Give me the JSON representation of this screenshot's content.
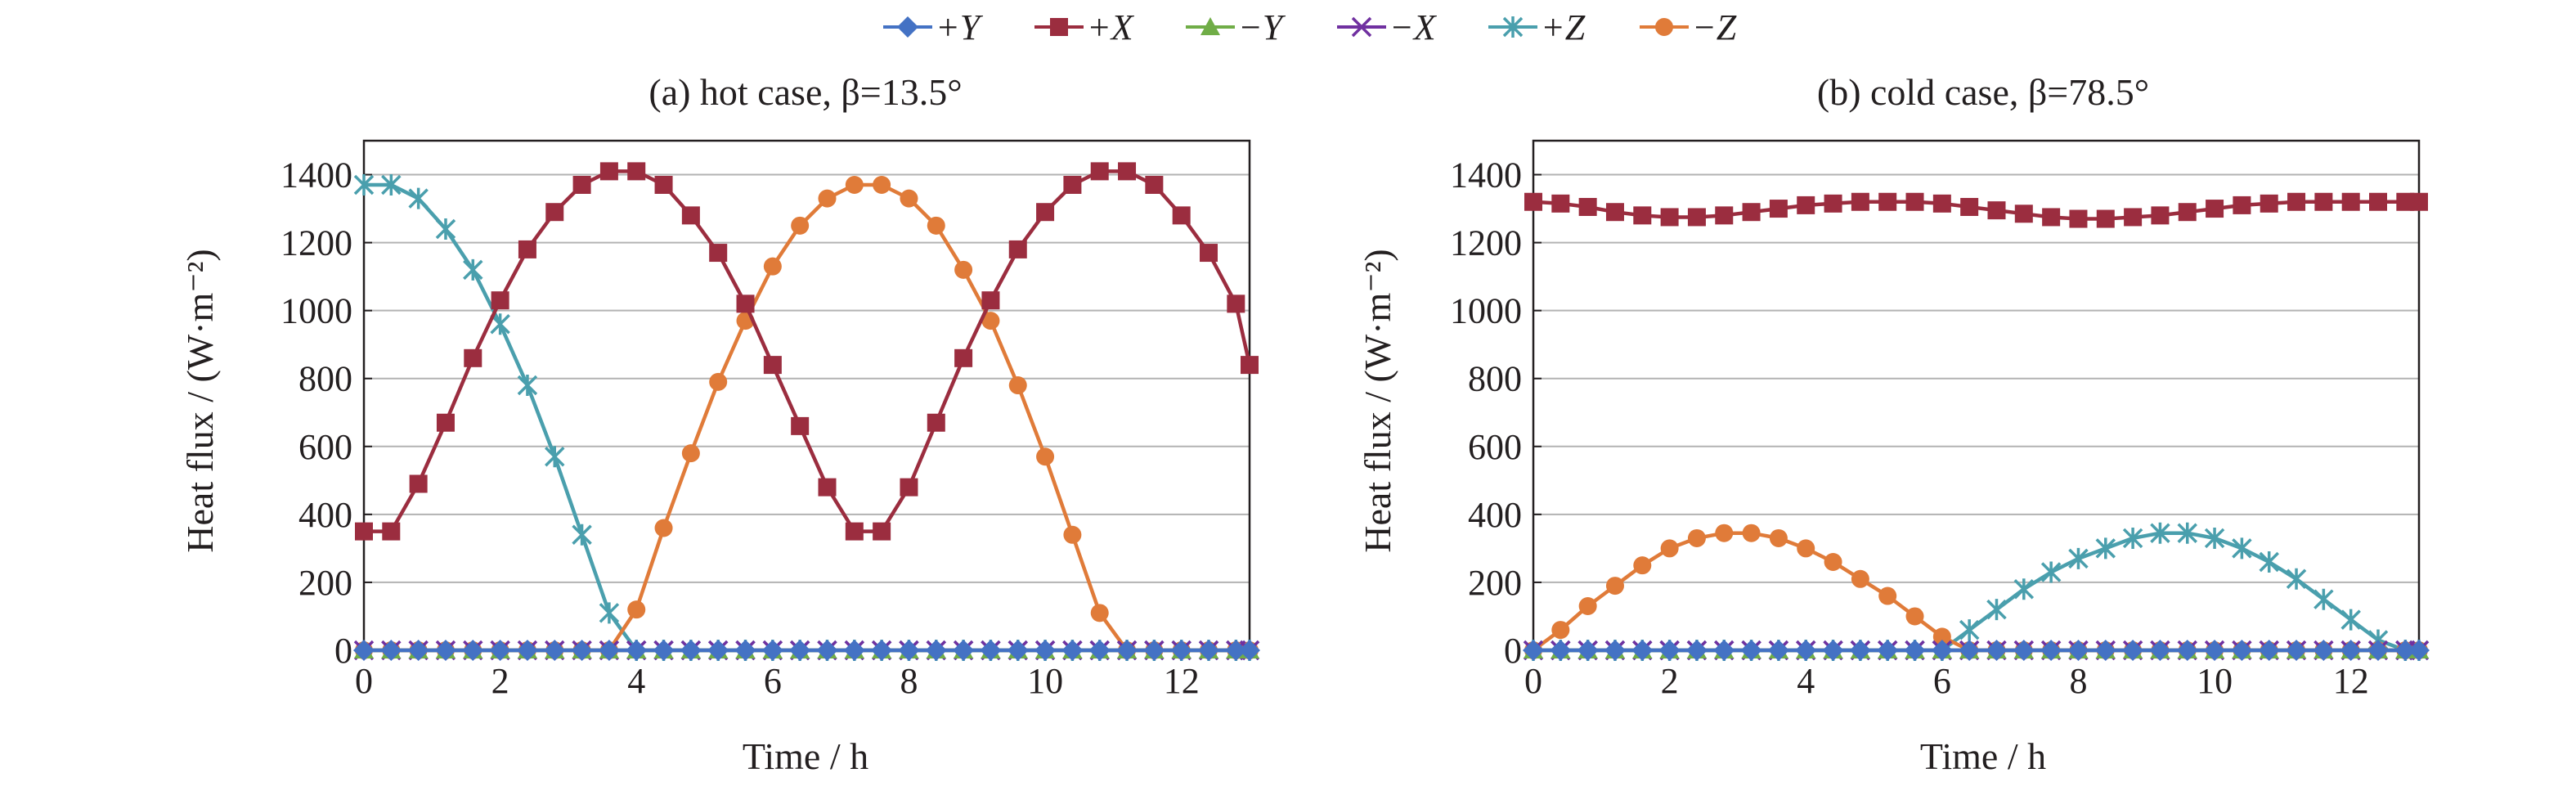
{
  "legend": [
    {
      "key": "+Y",
      "label": "+Y",
      "color": "#4472c4",
      "marker": "diamond"
    },
    {
      "key": "+X",
      "label": "+X",
      "color": "#9b2d3f",
      "marker": "square"
    },
    {
      "key": "-Y",
      "label": "−Y",
      "color": "#70ad47",
      "marker": "triangle"
    },
    {
      "key": "-X",
      "label": "−X",
      "color": "#7030a0",
      "marker": "x"
    },
    {
      "key": "+Z",
      "label": "+Z",
      "color": "#4a9fad",
      "marker": "star"
    },
    {
      "key": "-Z",
      "label": "−Z",
      "color": "#e07b39",
      "marker": "circle"
    }
  ],
  "chart_data": [
    {
      "type": "line",
      "title": "(a) hot case, β=13.5°",
      "xlabel": "Time / h",
      "ylabel": "Heat flux / (W·m⁻²)",
      "xlim": [
        0,
        13
      ],
      "ylim": [
        0,
        1500
      ],
      "xticks": [
        "0",
        "2",
        "4",
        "6",
        "8",
        "10",
        "12"
      ],
      "yticks": [
        "0",
        "200",
        "400",
        "600",
        "800",
        "1000",
        "1200",
        "1400"
      ],
      "grid": "horizontal",
      "x": [
        0,
        0.4,
        0.8,
        1.2,
        1.6,
        2.0,
        2.4,
        2.8,
        3.2,
        3.6,
        4.0,
        4.4,
        4.8,
        5.2,
        5.6,
        6.0,
        6.4,
        6.8,
        7.2,
        7.6,
        8.0,
        8.4,
        8.8,
        9.2,
        9.6,
        10.0,
        10.4,
        10.8,
        11.2,
        11.6,
        12.0,
        12.4,
        12.8,
        13.0
      ],
      "series": [
        {
          "name": "+Y",
          "values": [
            0,
            0,
            0,
            0,
            0,
            0,
            0,
            0,
            0,
            0,
            0,
            0,
            0,
            0,
            0,
            0,
            0,
            0,
            0,
            0,
            0,
            0,
            0,
            0,
            0,
            0,
            0,
            0,
            0,
            0,
            0,
            0,
            0,
            0
          ]
        },
        {
          "name": "+X",
          "values": [
            350,
            350,
            490,
            670,
            860,
            1030,
            1180,
            1290,
            1370,
            1410,
            1410,
            1370,
            1280,
            1170,
            1020,
            840,
            660,
            480,
            350,
            350,
            480,
            670,
            860,
            1030,
            1180,
            1290,
            1370,
            1410,
            1410,
            1370,
            1280,
            1170,
            1020,
            840
          ]
        },
        {
          "name": "-Y",
          "values": [
            0,
            0,
            0,
            0,
            0,
            0,
            0,
            0,
            0,
            0,
            0,
            0,
            0,
            0,
            0,
            0,
            0,
            0,
            0,
            0,
            0,
            0,
            0,
            0,
            0,
            0,
            0,
            0,
            0,
            0,
            0,
            0,
            0,
            0
          ]
        },
        {
          "name": "-X",
          "values": [
            0,
            0,
            0,
            0,
            0,
            0,
            0,
            0,
            0,
            0,
            0,
            0,
            0,
            0,
            0,
            0,
            0,
            0,
            0,
            0,
            0,
            0,
            0,
            0,
            0,
            0,
            0,
            0,
            0,
            0,
            0,
            0,
            0,
            0
          ]
        },
        {
          "name": "+Z",
          "values": [
            1370,
            1370,
            1330,
            1240,
            1120,
            960,
            780,
            570,
            340,
            110,
            0,
            0,
            0,
            0,
            0,
            0,
            0,
            0,
            0,
            0,
            0,
            0,
            0,
            0,
            0,
            0,
            0,
            0,
            0,
            0,
            0,
            0,
            0,
            0
          ]
        },
        {
          "name": "-Z",
          "values": [
            0,
            0,
            0,
            0,
            0,
            0,
            0,
            0,
            0,
            0,
            120,
            360,
            580,
            790,
            970,
            1130,
            1250,
            1330,
            1370,
            1370,
            1330,
            1250,
            1120,
            970,
            780,
            570,
            340,
            110,
            0,
            0,
            0,
            0,
            0,
            0
          ]
        }
      ]
    },
    {
      "type": "line",
      "title": "(b) cold case, β=78.5°",
      "xlabel": "Time / h",
      "ylabel": "Heat flux / (W·m⁻²)",
      "xlim": [
        0,
        13
      ],
      "ylim": [
        0,
        1500
      ],
      "xticks": [
        "0",
        "2",
        "4",
        "6",
        "8",
        "10",
        "12"
      ],
      "yticks": [
        "0",
        "200",
        "400",
        "600",
        "800",
        "1000",
        "1200",
        "1400"
      ],
      "grid": "horizontal",
      "x": [
        0,
        0.4,
        0.8,
        1.2,
        1.6,
        2.0,
        2.4,
        2.8,
        3.2,
        3.6,
        4.0,
        4.4,
        4.8,
        5.2,
        5.6,
        6.0,
        6.4,
        6.8,
        7.2,
        7.6,
        8.0,
        8.4,
        8.8,
        9.2,
        9.6,
        10.0,
        10.4,
        10.8,
        11.2,
        11.6,
        12.0,
        12.4,
        12.8,
        13.0
      ],
      "series": [
        {
          "name": "+Y",
          "values": [
            0,
            0,
            0,
            0,
            0,
            0,
            0,
            0,
            0,
            0,
            0,
            0,
            0,
            0,
            0,
            0,
            0,
            0,
            0,
            0,
            0,
            0,
            0,
            0,
            0,
            0,
            0,
            0,
            0,
            0,
            0,
            0,
            0,
            0
          ]
        },
        {
          "name": "+X",
          "values": [
            1320,
            1315,
            1305,
            1290,
            1280,
            1275,
            1275,
            1280,
            1290,
            1300,
            1310,
            1315,
            1320,
            1320,
            1320,
            1315,
            1305,
            1295,
            1285,
            1275,
            1270,
            1270,
            1275,
            1280,
            1290,
            1300,
            1310,
            1315,
            1320,
            1320,
            1320,
            1320,
            1320,
            1320
          ]
        },
        {
          "name": "-Y",
          "values": [
            0,
            0,
            0,
            0,
            0,
            0,
            0,
            0,
            0,
            0,
            0,
            0,
            0,
            0,
            0,
            0,
            0,
            0,
            0,
            0,
            0,
            0,
            0,
            0,
            0,
            0,
            0,
            0,
            0,
            0,
            0,
            0,
            0,
            0
          ]
        },
        {
          "name": "-X",
          "values": [
            0,
            0,
            0,
            0,
            0,
            0,
            0,
            0,
            0,
            0,
            0,
            0,
            0,
            0,
            0,
            0,
            0,
            0,
            0,
            0,
            0,
            0,
            0,
            0,
            0,
            0,
            0,
            0,
            0,
            0,
            0,
            0,
            0,
            0
          ]
        },
        {
          "name": "+Z",
          "values": [
            0,
            0,
            0,
            0,
            0,
            0,
            0,
            0,
            0,
            0,
            0,
            0,
            0,
            0,
            0,
            0,
            60,
            120,
            180,
            230,
            270,
            300,
            330,
            345,
            345,
            330,
            300,
            260,
            210,
            150,
            90,
            30,
            0,
            0
          ]
        },
        {
          "name": "-Z",
          "values": [
            0,
            60,
            130,
            190,
            250,
            300,
            330,
            345,
            345,
            330,
            300,
            260,
            210,
            160,
            100,
            40,
            0,
            0,
            0,
            0,
            0,
            0,
            0,
            0,
            0,
            0,
            0,
            0,
            0,
            0,
            0,
            0,
            0,
            0
          ]
        }
      ]
    }
  ]
}
